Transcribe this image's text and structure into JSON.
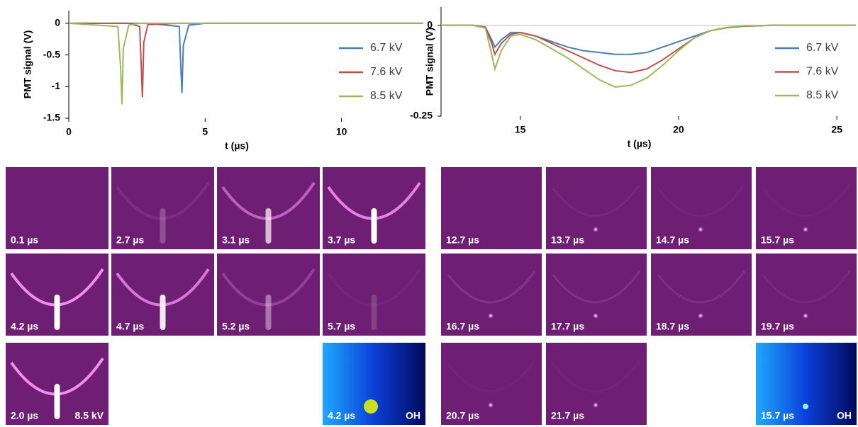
{
  "chart_data": [
    {
      "type": "line",
      "xlabel": "t (µs)",
      "ylabel": "PMT signal (V)",
      "x": [
        0,
        1.8,
        1.9,
        1.95,
        2.0,
        2.2,
        2.6,
        2.65,
        2.7,
        2.75,
        2.9,
        4.05,
        4.1,
        4.15,
        4.2,
        4.4,
        5,
        13
      ],
      "series": [
        {
          "name": "6.7 kV",
          "color": "#4a7ebb",
          "values": [
            0,
            0,
            0,
            0,
            0,
            0,
            0,
            0,
            0,
            0,
            0,
            -0.05,
            -0.6,
            -1.1,
            -0.35,
            -0.03,
            0,
            0
          ]
        },
        {
          "name": "7.6 kV",
          "color": "#c0504d",
          "values": [
            0,
            0,
            0,
            0,
            0,
            0,
            -0.05,
            -0.6,
            -1.17,
            -0.3,
            -0.02,
            0,
            0,
            0,
            0,
            0,
            0,
            0
          ]
        },
        {
          "name": "8.5 kV",
          "color": "#9bbb59",
          "values": [
            0,
            -0.05,
            -0.7,
            -1.28,
            -0.4,
            -0.03,
            0,
            0,
            0,
            0,
            0,
            0,
            0,
            0,
            0,
            0,
            0,
            0
          ]
        }
      ],
      "xlim": [
        0,
        13
      ],
      "xticks": [
        0,
        5,
        10
      ],
      "ylim": [
        -1.5,
        0.2
      ],
      "yticks": [
        0,
        -0.5,
        -1,
        -1.5
      ]
    },
    {
      "type": "line",
      "xlabel": "t (µs)",
      "ylabel": "PMT signal (V)",
      "x": [
        12.5,
        13.5,
        13.9,
        14.1,
        14.2,
        14.4,
        14.7,
        15,
        15.5,
        16,
        16.5,
        17,
        17.5,
        18,
        18.5,
        19,
        19.5,
        20,
        20.5,
        21,
        21.5,
        22,
        23,
        25.6
      ],
      "series": [
        {
          "name": "6.7 kV",
          "color": "#4a7ebb",
          "values": [
            0,
            0,
            -0.005,
            -0.04,
            -0.06,
            -0.04,
            -0.02,
            -0.02,
            -0.03,
            -0.045,
            -0.06,
            -0.07,
            -0.075,
            -0.08,
            -0.08,
            -0.075,
            -0.06,
            -0.045,
            -0.03,
            -0.015,
            -0.007,
            -0.003,
            0,
            0
          ]
        },
        {
          "name": "7.6 kV",
          "color": "#c0504d",
          "values": [
            0,
            0,
            -0.005,
            -0.05,
            -0.08,
            -0.05,
            -0.025,
            -0.02,
            -0.03,
            -0.05,
            -0.07,
            -0.09,
            -0.11,
            -0.125,
            -0.13,
            -0.12,
            -0.095,
            -0.065,
            -0.035,
            -0.015,
            -0.007,
            -0.003,
            0,
            0
          ]
        },
        {
          "name": "8.5 kV",
          "color": "#9bbb59",
          "values": [
            0,
            0,
            -0.008,
            -0.08,
            -0.12,
            -0.07,
            -0.03,
            -0.025,
            -0.04,
            -0.065,
            -0.09,
            -0.12,
            -0.15,
            -0.17,
            -0.165,
            -0.145,
            -0.11,
            -0.07,
            -0.035,
            -0.015,
            -0.006,
            -0.002,
            0,
            0
          ]
        }
      ],
      "xlim": [
        12.5,
        25.6
      ],
      "xticks": [
        15,
        20,
        25
      ],
      "ylim": [
        -0.25,
        0.05
      ],
      "yticks": [
        0,
        -0.25
      ]
    }
  ],
  "image_grids": [
    {
      "rows": [
        [
          {
            "label": "0.1 µs"
          },
          {
            "label": "2.7 µs"
          },
          {
            "label": "3.1 µs"
          },
          {
            "label": "3.7 µs"
          }
        ],
        [
          {
            "label": "4.2 µs"
          },
          {
            "label": "4.7 µs"
          },
          {
            "label": "5.2 µs"
          },
          {
            "label": "5.7 µs"
          }
        ],
        [
          {
            "label": "2.0 µs",
            "note": "8.5 kV"
          },
          {
            "label": "4.2 µs",
            "note": "OH"
          }
        ]
      ]
    },
    {
      "rows": [
        [
          {
            "label": "12.7 µs"
          },
          {
            "label": "13.7 µs"
          },
          {
            "label": "14.7 µs"
          },
          {
            "label": "15.7 µs"
          }
        ],
        [
          {
            "label": "16.7 µs"
          },
          {
            "label": "17.7 µs"
          },
          {
            "label": "18.7 µs"
          },
          {
            "label": "19.7 µs"
          }
        ],
        [
          {
            "label": "20.7 µs"
          },
          {
            "label": "21.7 µs"
          },
          {
            "label": "15.7 µs",
            "note": "OH"
          }
        ]
      ]
    }
  ]
}
